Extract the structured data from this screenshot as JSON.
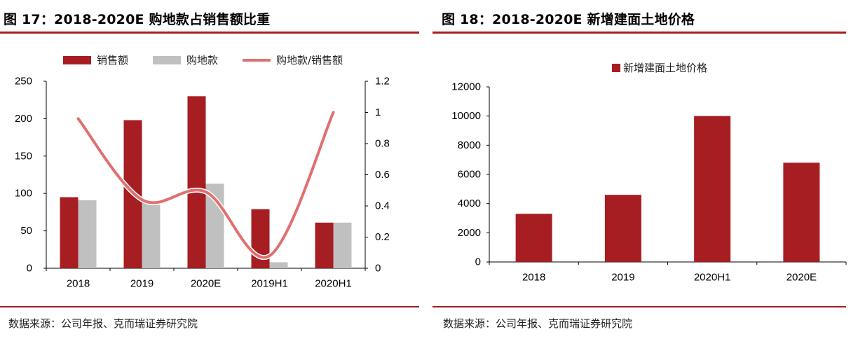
{
  "colors": {
    "accent": "#a61d22",
    "sales_bar": "#a61d22",
    "land_bar": "#c0c0c0",
    "ratio_line": "#e07070"
  },
  "left": {
    "title": "图 17：2018-2020E  购地款占销售额比重",
    "source": "数据来源：公司年报、克而瑞证券研究院"
  },
  "right": {
    "title": "图 18：2018-2020E 新增建面土地价格",
    "source": "数据来源：公司年报、克而瑞证券研究院"
  },
  "chart_data": [
    {
      "type": "bar",
      "categories": [
        "2018",
        "2019",
        "2020E",
        "2019H1",
        "2020H1"
      ],
      "series": [
        {
          "name": "销售额",
          "type": "bar",
          "axis": "left",
          "color": "#a61d22",
          "values": [
            95,
            198,
            230,
            79,
            61
          ]
        },
        {
          "name": "购地款",
          "type": "bar",
          "axis": "left",
          "color": "#c0c0c0",
          "values": [
            91,
            88,
            113,
            8,
            61
          ]
        },
        {
          "name": "购地款/销售额",
          "type": "line",
          "axis": "right",
          "color": "#e07070",
          "values": [
            0.96,
            0.44,
            0.49,
            0.08,
            1.0
          ]
        }
      ],
      "ylim": [
        0,
        250
      ],
      "yticks": [
        "0",
        "50",
        "100",
        "150",
        "200",
        "250"
      ],
      "y2lim": [
        0,
        1.2
      ],
      "y2ticks": [
        "0",
        "0.2",
        "0.4",
        "0.6",
        "0.8",
        "1",
        "1.2"
      ],
      "legend": "top",
      "grid": false
    },
    {
      "type": "bar",
      "categories": [
        "2018",
        "2019",
        "2020H1",
        "2020E"
      ],
      "series": [
        {
          "name": "新增建面土地价格",
          "color": "#a61d22",
          "values": [
            3300,
            4600,
            10000,
            6800
          ]
        }
      ],
      "ylim": [
        0,
        12000
      ],
      "yticks": [
        "0",
        "2000",
        "4000",
        "6000",
        "8000",
        "10000",
        "12000"
      ],
      "legend": "top",
      "grid": false
    }
  ]
}
